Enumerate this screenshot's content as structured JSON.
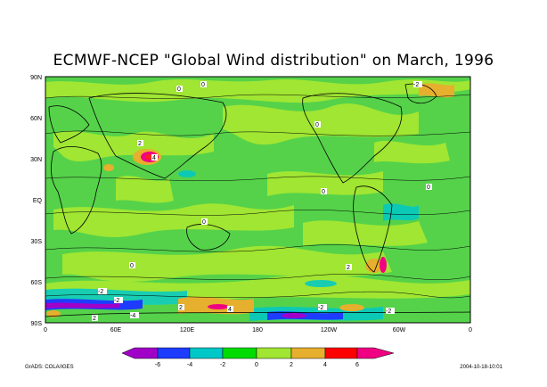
{
  "title": "ECMWF-NCEP \"Global Wind distribution\" on March, 1996",
  "map": {
    "lat_labels": [
      "90N",
      "60N",
      "30N",
      "EQ",
      "30S",
      "60S",
      "90S"
    ],
    "lon_labels": [
      "0",
      "60E",
      "120E",
      "180",
      "120W",
      "60W",
      "0"
    ],
    "contour_labels": [
      "0",
      "-2",
      "2",
      "-4",
      "4"
    ]
  },
  "colorbar": {
    "tick_labels": [
      "-6",
      "-4",
      "-2",
      "0",
      "2",
      "4",
      "6"
    ],
    "colors": [
      "#a000c8",
      "#1e3cff",
      "#00c8c8",
      "#00dc00",
      "#a0e632",
      "#e6af2d",
      "#f00082"
    ]
  },
  "footer": {
    "left": "GrADS: COLA/IGES",
    "right": "2004-10-18-10:01"
  }
}
